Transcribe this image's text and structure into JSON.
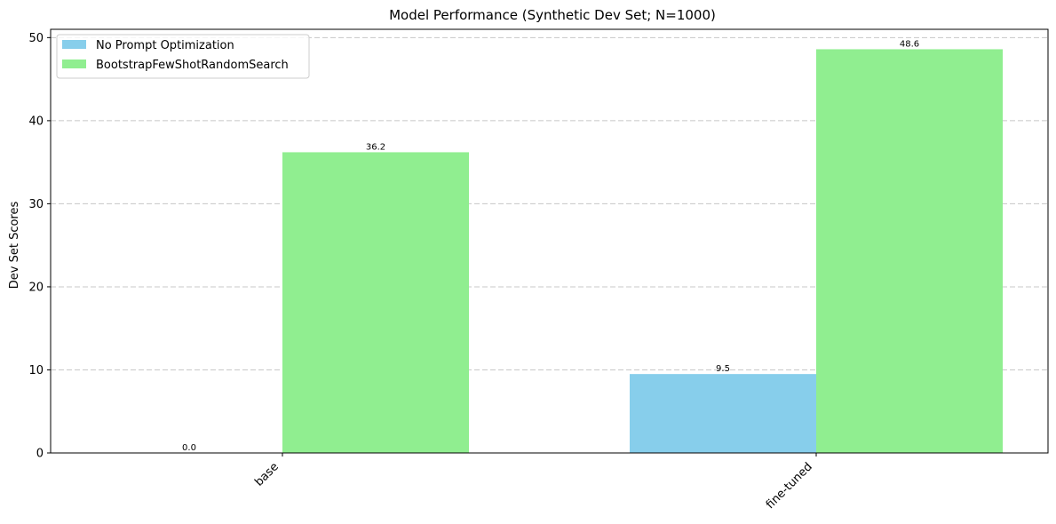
{
  "chart_data": {
    "type": "bar",
    "title": "Model Performance (Synthetic Dev Set; N=1000)",
    "xlabel": "",
    "ylabel": "Dev Set Scores",
    "categories": [
      "base",
      "fine-tuned"
    ],
    "series": [
      {
        "name": "No Prompt Optimization",
        "values": [
          0.0,
          9.5
        ],
        "labels": [
          "0.0",
          "9.5"
        ],
        "color": "#87ceeb"
      },
      {
        "name": "BootstrapFewShotRandomSearch",
        "values": [
          36.2,
          48.6
        ],
        "labels": [
          "36.2",
          "48.6"
        ],
        "color": "#90ee90"
      }
    ],
    "ylim": [
      0,
      51
    ],
    "yticks": [
      0,
      10,
      20,
      30,
      40,
      50
    ],
    "ytick_labels": [
      "0",
      "10",
      "20",
      "30",
      "40",
      "50"
    ],
    "grid": "y",
    "legend": "top-left"
  }
}
